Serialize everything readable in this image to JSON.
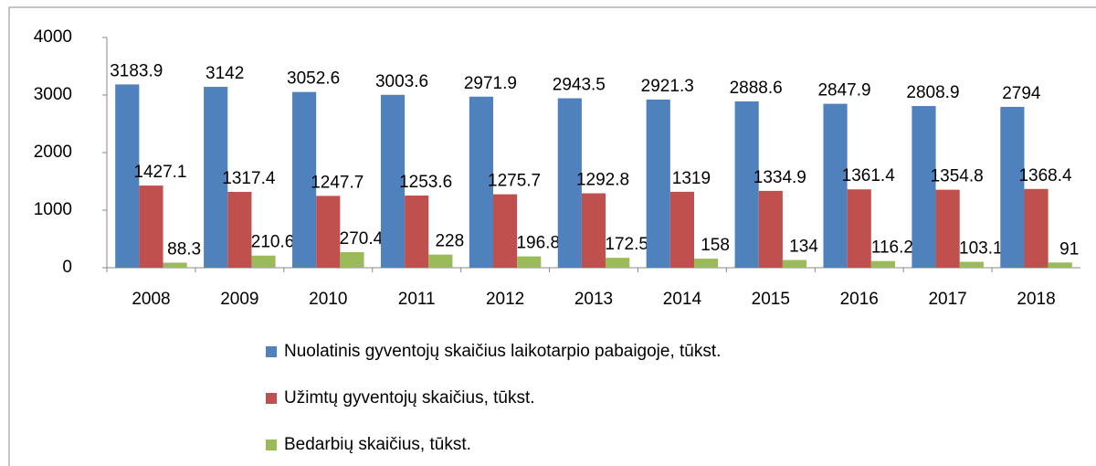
{
  "chart_data": {
    "type": "bar",
    "categories": [
      "2008",
      "2009",
      "2010",
      "2011",
      "2012",
      "2013",
      "2014",
      "2015",
      "2016",
      "2017",
      "2018"
    ],
    "series": [
      {
        "name": "Nuolatinis gyventojų skaičius laikotarpio pabaigoje, tūkst.",
        "color": "#4f81bd",
        "values": [
          3183.9,
          3142,
          3052.6,
          3003.6,
          2971.9,
          2943.5,
          2921.3,
          2888.6,
          2847.9,
          2808.9,
          2794
        ]
      },
      {
        "name": "Užimtų gyventojų skaičius, tūkst.",
        "color": "#c0504d",
        "values": [
          1427.1,
          1317.4,
          1247.7,
          1253.6,
          1275.7,
          1292.8,
          1319,
          1334.9,
          1361.4,
          1354.8,
          1368.4
        ]
      },
      {
        "name": "Bedarbių skaičius, tūkst.",
        "color": "#9bbb59",
        "values": [
          88.3,
          210.6,
          270.4,
          228,
          196.8,
          172.5,
          158,
          134,
          116.2,
          103.1,
          91
        ]
      }
    ],
    "ylim": [
      0,
      4000
    ],
    "yticks": [
      0,
      1000,
      2000,
      3000,
      4000
    ],
    "grid": false,
    "legend": "bottom"
  }
}
